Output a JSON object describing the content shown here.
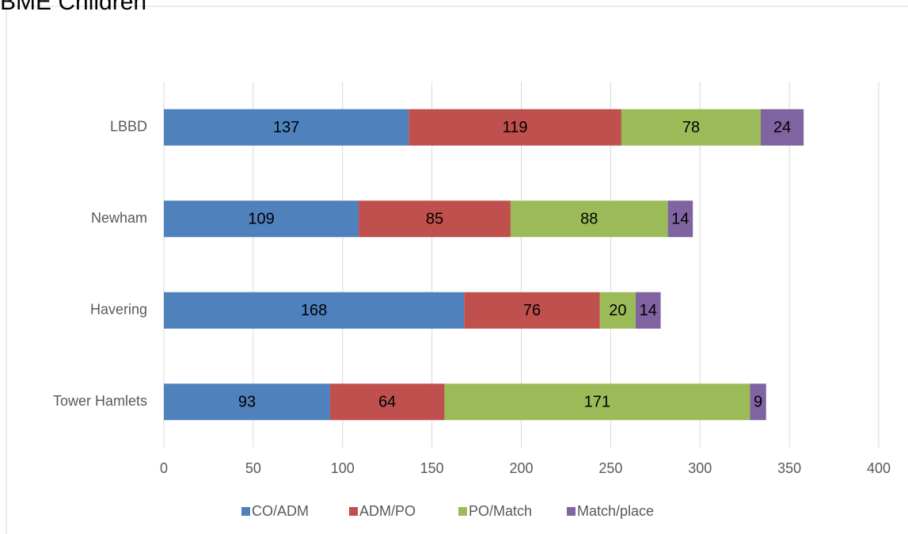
{
  "chart_data": {
    "type": "stacked_bar_horizontal",
    "title": "BME Children",
    "categories": [
      "LBBD",
      "Newham",
      "Havering",
      "Tower Hamlets"
    ],
    "series": [
      {
        "name": "CO/ADM",
        "color": "#4f81bd",
        "values": [
          137,
          109,
          168,
          93
        ]
      },
      {
        "name": "ADM/PO",
        "color": "#c0504d",
        "values": [
          119,
          85,
          76,
          64
        ]
      },
      {
        "name": "PO/Match",
        "color": "#9bbb59",
        "values": [
          78,
          88,
          20,
          171
        ]
      },
      {
        "name": "Match/place",
        "color": "#8064a2",
        "values": [
          24,
          14,
          14,
          9
        ]
      }
    ],
    "xlim": [
      0,
      400
    ],
    "xticks": [
      0,
      50,
      100,
      150,
      200,
      250,
      300,
      350,
      400
    ],
    "grid": true,
    "legend": "bottom"
  }
}
